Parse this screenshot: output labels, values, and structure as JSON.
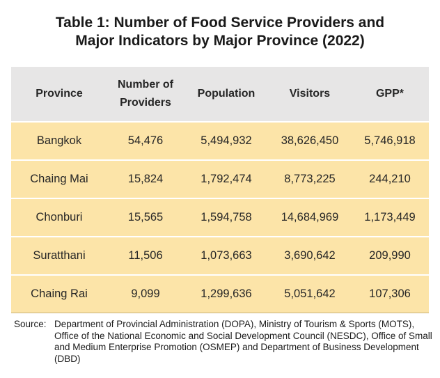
{
  "title": {
    "line1": "Table 1:  Number of Food Service Providers and",
    "line2": "Major Indicators by Major Province (2022)"
  },
  "table": {
    "headers": {
      "province": "Province",
      "providers_line1": "Number of",
      "providers_line2": "Providers",
      "population": "Population",
      "visitors": "Visitors",
      "gpp": "GPP*"
    },
    "rows": [
      {
        "province": "Bangkok",
        "providers": "54,476",
        "population": "5,494,932",
        "visitors": "38,626,450",
        "gpp": "5,746,918"
      },
      {
        "province": "Chaing Mai",
        "providers": "15,824",
        "population": "1,792,474",
        "visitors": "8,773,225",
        "gpp": "244,210"
      },
      {
        "province": "Chonburi",
        "providers": "15,565",
        "population": "1,594,758",
        "visitors": "14,684,969",
        "gpp": "1,173,449"
      },
      {
        "province": "Suratthani",
        "providers": "11,506",
        "population": "1,073,663",
        "visitors": "3,690,642",
        "gpp": "209,990"
      },
      {
        "province": "Chaing Rai",
        "providers": "9,099",
        "population": "1,299,636",
        "visitors": "5,051,642",
        "gpp": "107,306"
      }
    ]
  },
  "source": {
    "label": "Source:",
    "text": "Department of Provincial Administration (DOPA), Ministry of Tourism & Sports (MOTS), Office of the National Economic and Social Development Council (NESDC), Office of Small and Medium Enterprise Promotion (OSMEP) and Department of Business Development (DBD)"
  },
  "colors": {
    "header_bg": "#e7e6e6",
    "row_bg": "#fce4a8",
    "text": "#262626"
  }
}
